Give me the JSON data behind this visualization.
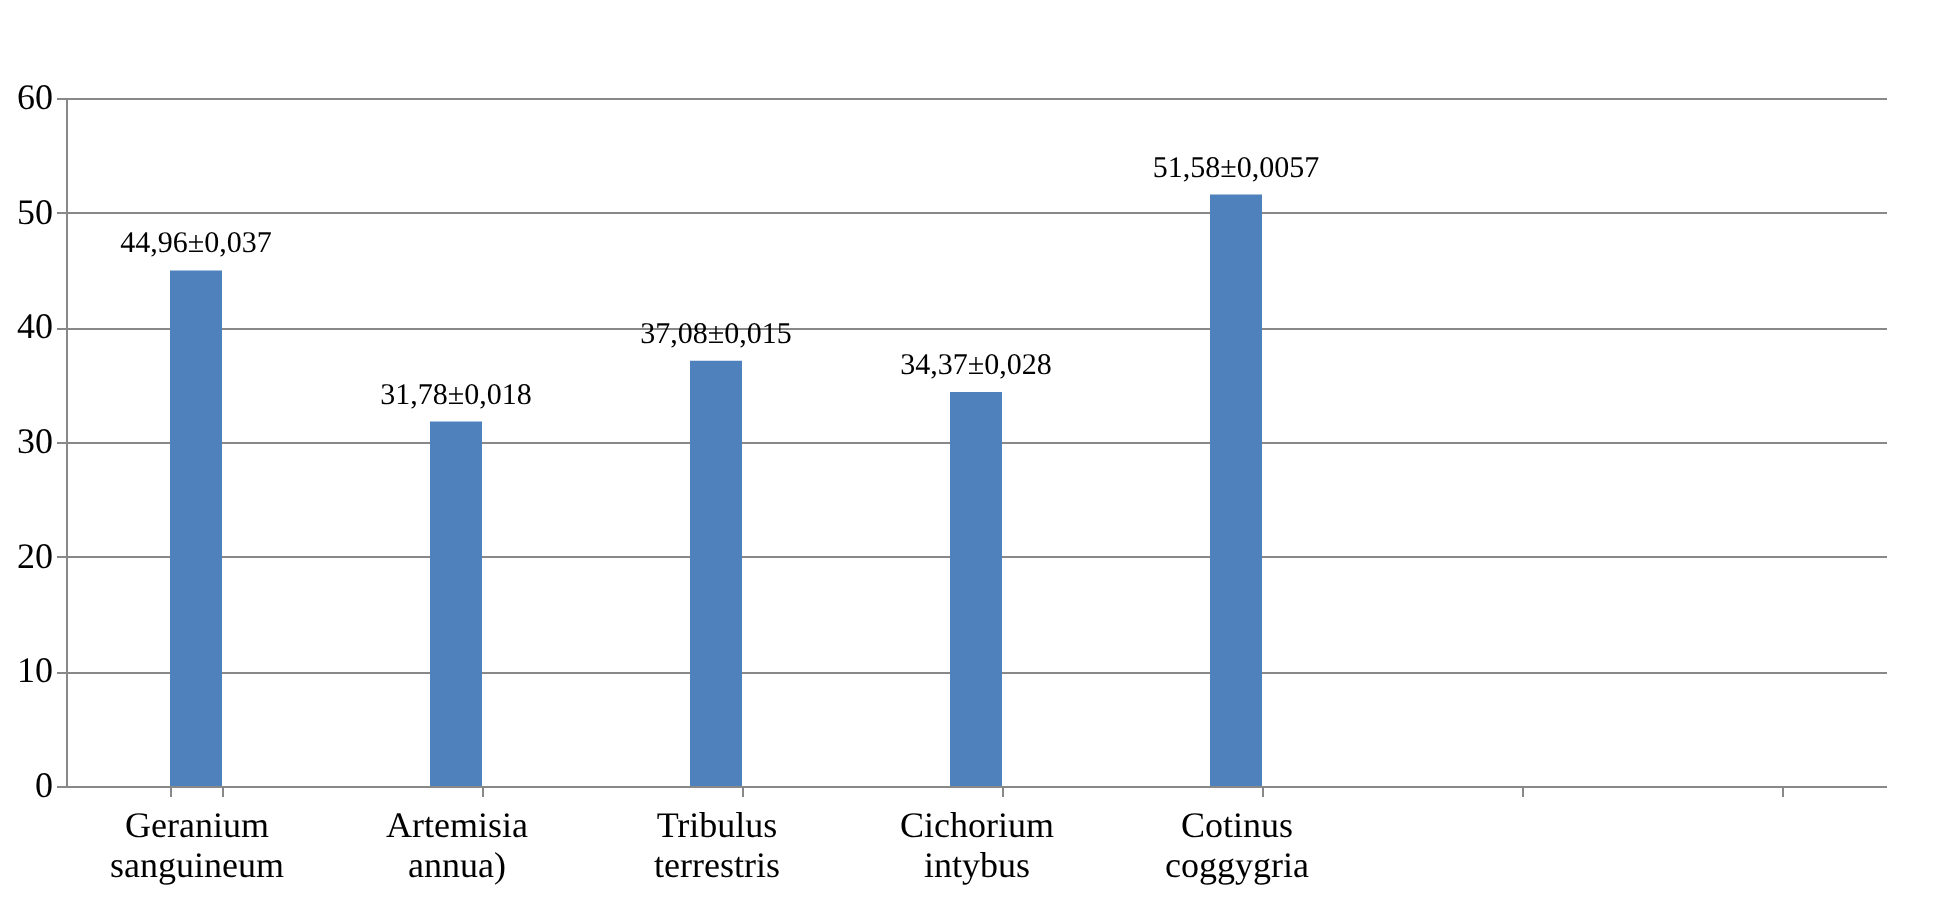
{
  "chart_data": {
    "type": "bar",
    "categories": [
      "Geranium sanguineum",
      "Artemisia annua)",
      "Tribulus terrestris",
      "Cichorium intybus",
      "Cotinus coggygria",
      null,
      null
    ],
    "values": [
      44.96,
      31.78,
      37.08,
      34.37,
      51.58,
      null,
      null
    ],
    "value_labels": [
      "44,96±0,037",
      "31,78±0,018",
      "37,08±0,015",
      "34,37±0,028",
      "51,58±0,0057",
      null,
      null
    ],
    "color": "#4f81bd",
    "ylim": [
      0,
      60
    ],
    "yticks": [
      0,
      10,
      20,
      30,
      40,
      50,
      60
    ],
    "grid": "y"
  }
}
